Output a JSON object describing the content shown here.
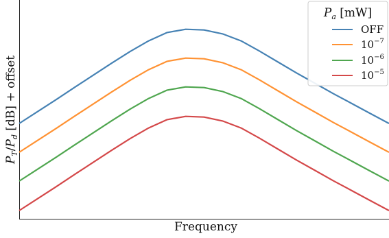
{
  "chart_data": {
    "type": "line",
    "xlabel": "Frequency",
    "ylabel": "P_T/P_d [dB] + offset",
    "grid": false,
    "legend": {
      "title": "P_a [mW]",
      "placement": "top-right"
    },
    "x": [
      0,
      1,
      2,
      3,
      4,
      5,
      6,
      7,
      8,
      9,
      10,
      11,
      12,
      13,
      14,
      15,
      16,
      17,
      18,
      19,
      20
    ],
    "series": [
      {
        "name": "OFF",
        "color": "#4682b4",
        "values": [
          0.0,
          0.094,
          0.188,
          0.285,
          0.38,
          0.475,
          0.567,
          0.651,
          0.717,
          0.742,
          0.737,
          0.706,
          0.651,
          0.57,
          0.484,
          0.398,
          0.316,
          0.234,
          0.156,
          0.078,
          0.0
        ]
      },
      {
        "name": "10^-7",
        "color": "#ff9233",
        "values": [
          0.0,
          0.094,
          0.188,
          0.285,
          0.38,
          0.475,
          0.567,
          0.651,
          0.717,
          0.742,
          0.737,
          0.706,
          0.651,
          0.57,
          0.484,
          0.398,
          0.316,
          0.234,
          0.156,
          0.078,
          0.0
        ]
      },
      {
        "name": "10^-6",
        "color": "#4fa64f",
        "values": [
          0.0,
          0.094,
          0.188,
          0.285,
          0.38,
          0.475,
          0.567,
          0.651,
          0.717,
          0.742,
          0.737,
          0.706,
          0.651,
          0.57,
          0.484,
          0.398,
          0.316,
          0.234,
          0.156,
          0.078,
          0.0
        ]
      },
      {
        "name": "10^-5",
        "color": "#d44849",
        "values": [
          0.0,
          0.094,
          0.188,
          0.285,
          0.38,
          0.475,
          0.567,
          0.651,
          0.717,
          0.742,
          0.737,
          0.706,
          0.651,
          0.57,
          0.484,
          0.398,
          0.316,
          0.234,
          0.156,
          0.078,
          0.0
        ]
      }
    ]
  }
}
